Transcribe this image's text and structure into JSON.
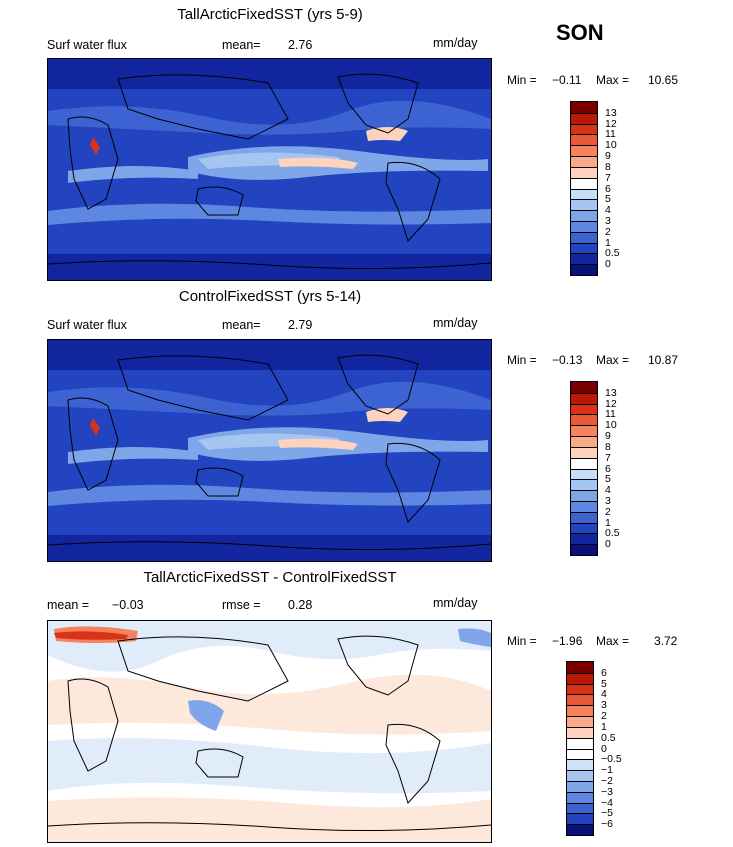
{
  "season": "SON",
  "chart_data": [
    {
      "type": "heatmap",
      "title": "TallArcticFixedSST (yrs 5-9)",
      "variable": "Surf water flux",
      "stat1_label": "mean=",
      "stat1_value": "2.76",
      "units": "mm/day",
      "min_label": "Min =",
      "min": "−0.11",
      "max_label": "Max =",
      "max": "10.65",
      "colorbar_levels": [
        "13",
        "12",
        "11",
        "10",
        "9",
        "8",
        "7",
        "6",
        "5",
        "4",
        "3",
        "2",
        "1",
        "0.5",
        "0"
      ],
      "colorbar_colors": [
        "#7a0000",
        "#b81a06",
        "#d83218",
        "#e85a36",
        "#f4825c",
        "#f9a98a",
        "#fdd3bd",
        "#ffffff",
        "#c8ddf8",
        "#a6c5f1",
        "#7fa6e8",
        "#5d87e0",
        "#3d63d2",
        "#2244c0",
        "#10259e",
        "#06127a"
      ]
    },
    {
      "type": "heatmap",
      "title": "ControlFixedSST (yrs 5-14)",
      "variable": "Surf water flux",
      "stat1_label": "mean=",
      "stat1_value": "2.79",
      "units": "mm/day",
      "min_label": "Min =",
      "min": "−0.13",
      "max_label": "Max =",
      "max": "10.87",
      "colorbar_levels": [
        "13",
        "12",
        "11",
        "10",
        "9",
        "8",
        "7",
        "6",
        "5",
        "4",
        "3",
        "2",
        "1",
        "0.5",
        "0"
      ],
      "colorbar_colors": [
        "#7a0000",
        "#b81a06",
        "#d83218",
        "#e85a36",
        "#f4825c",
        "#f9a98a",
        "#fdd3bd",
        "#ffffff",
        "#c8ddf8",
        "#a6c5f1",
        "#7fa6e8",
        "#5d87e0",
        "#3d63d2",
        "#2244c0",
        "#10259e",
        "#06127a"
      ]
    },
    {
      "type": "heatmap",
      "title": "TallArcticFixedSST - ControlFixedSST",
      "stat1_label": "mean =",
      "stat1_value": "−0.03",
      "stat2_label": "rmse =",
      "stat2_value": "0.28",
      "units": "mm/day",
      "min_label": "Min =",
      "min": "−1.96",
      "max_label": "Max =",
      "max": "3.72",
      "colorbar_levels": [
        "6",
        "5",
        "4",
        "3",
        "2",
        "1",
        "0.5",
        "0",
        "−0.5",
        "−1",
        "−2",
        "−3",
        "−4",
        "−5",
        "−6"
      ],
      "colorbar_colors": [
        "#7a0000",
        "#b81a06",
        "#d83218",
        "#e85a36",
        "#f4825c",
        "#f9a98a",
        "#fdd3bd",
        "#ffffff",
        "#ffffff",
        "#cfe0f8",
        "#a6c5f1",
        "#7fa6e8",
        "#5d87e0",
        "#3d63d2",
        "#2244c0",
        "#06127a"
      ]
    }
  ]
}
